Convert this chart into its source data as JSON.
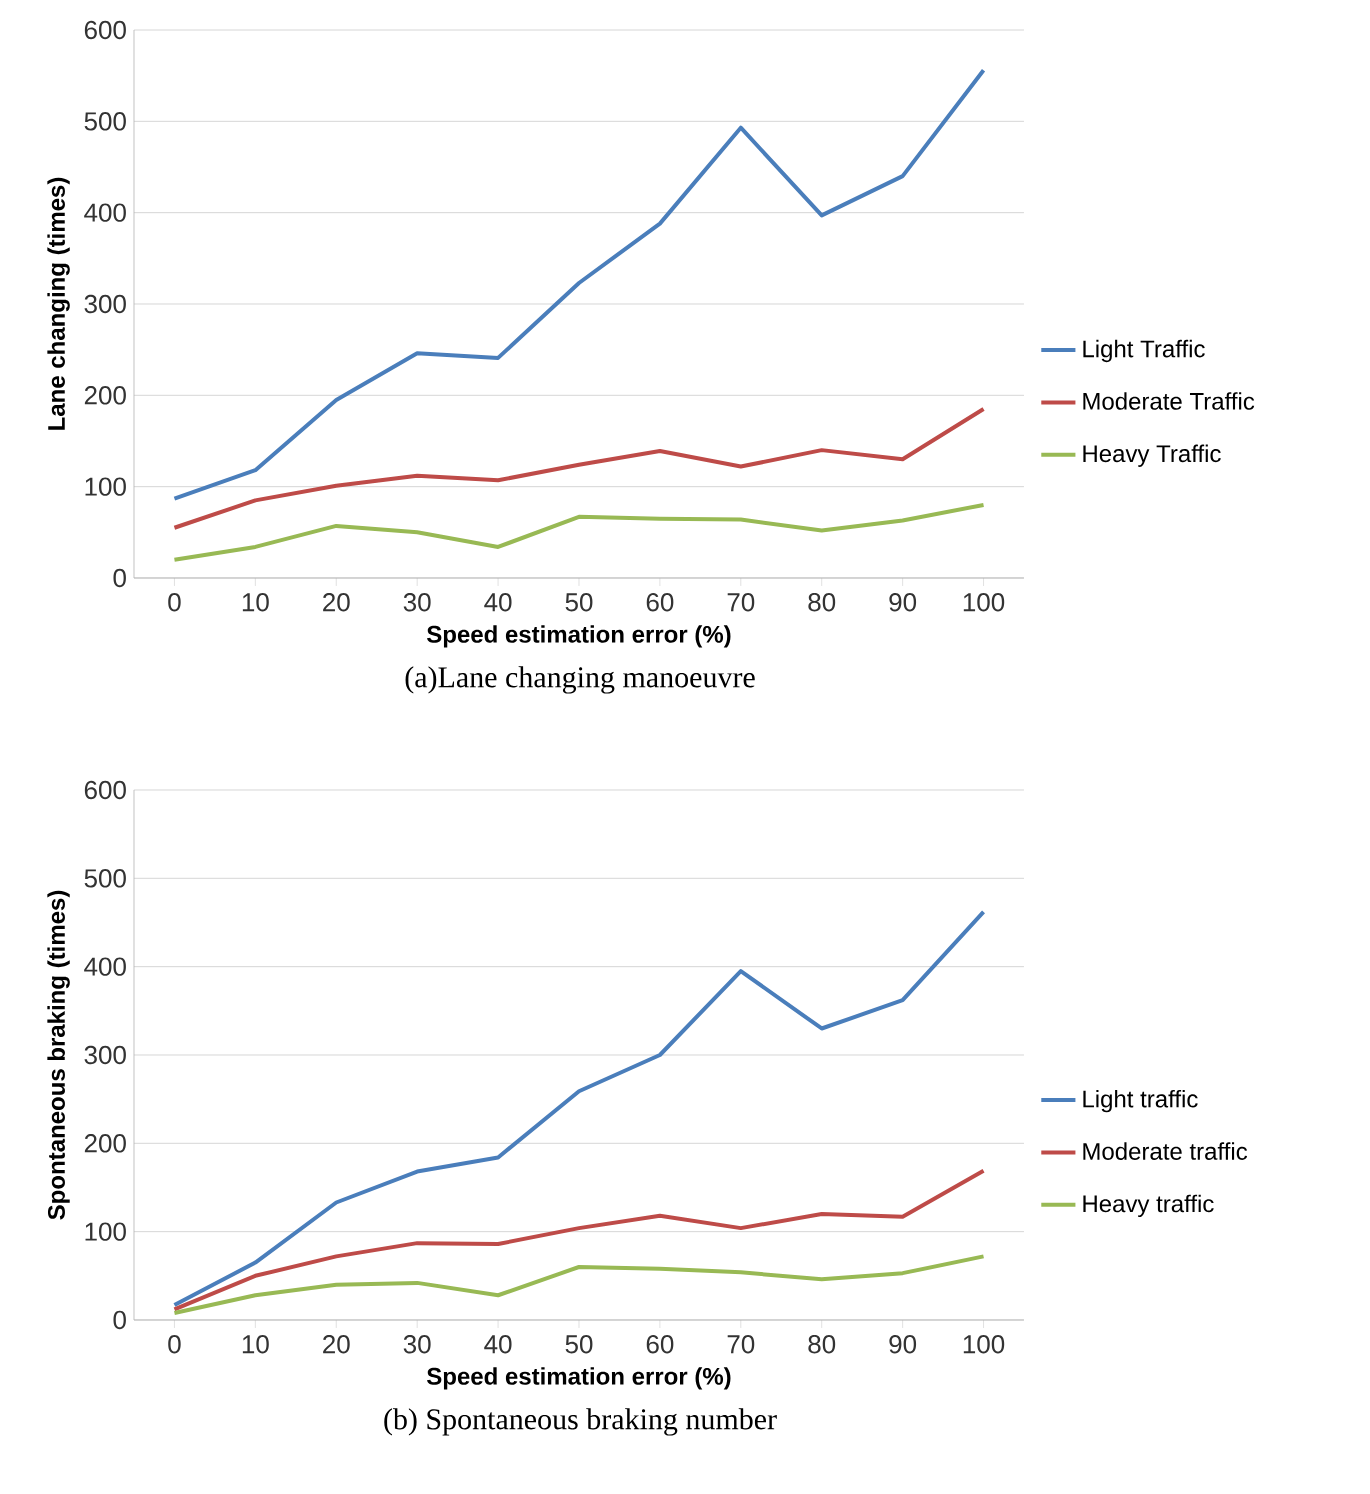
{
  "chart_data": [
    {
      "type": "line",
      "xlabel": "Speed estimation error (%)",
      "ylabel": "Lane changing (times)",
      "categories": [
        "0",
        "10",
        "20",
        "30",
        "40",
        "50",
        "60",
        "70",
        "80",
        "90",
        "100"
      ],
      "series": [
        {
          "name": "Light Traffic",
          "color": "#4a7ebb",
          "values": [
            87,
            118,
            195,
            246,
            241,
            323,
            388,
            493,
            397,
            440,
            556
          ]
        },
        {
          "name": "Moderate Traffic",
          "color": "#be4b48",
          "values": [
            55,
            85,
            101,
            112,
            107,
            124,
            139,
            122,
            140,
            130,
            185
          ]
        },
        {
          "name": "Heavy Traffic",
          "color": "#98b954",
          "values": [
            20,
            34,
            57,
            50,
            34,
            67,
            65,
            64,
            52,
            63,
            80
          ]
        }
      ],
      "ylim": [
        0,
        600
      ],
      "yticks": [
        0,
        100,
        200,
        300,
        400,
        500,
        600
      ],
      "grid": "y",
      "legend": "right",
      "annotations": [
        "(a)Lane changing manoeuvre"
      ]
    },
    {
      "type": "line",
      "xlabel": "Speed estimation error (%)",
      "ylabel": "Spontaneous braking (times)",
      "categories": [
        "0",
        "10",
        "20",
        "30",
        "40",
        "50",
        "60",
        "70",
        "80",
        "90",
        "100"
      ],
      "series": [
        {
          "name": "Light traffic",
          "color": "#4a7ebb",
          "values": [
            17,
            65,
            133,
            168,
            184,
            259,
            300,
            395,
            330,
            362,
            462
          ]
        },
        {
          "name": "Moderate traffic",
          "color": "#be4b48",
          "values": [
            12,
            50,
            72,
            87,
            86,
            104,
            118,
            104,
            120,
            117,
            169
          ]
        },
        {
          "name": "Heavy traffic",
          "color": "#98b954",
          "values": [
            8,
            28,
            40,
            42,
            28,
            60,
            58,
            54,
            46,
            53,
            72
          ]
        }
      ],
      "ylim": [
        0,
        600
      ],
      "yticks": [
        0,
        100,
        200,
        300,
        400,
        500,
        600
      ],
      "grid": "y",
      "legend": "right",
      "annotations": [
        "(b) Spontaneous braking number"
      ]
    }
  ]
}
